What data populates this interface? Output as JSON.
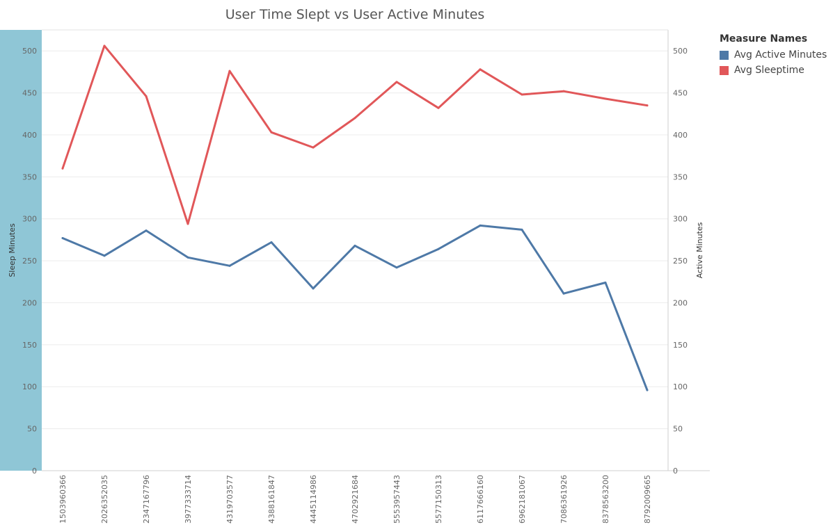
{
  "chart_data": {
    "type": "line",
    "title": "User Time Slept vs User Active Minutes",
    "categories": [
      "1503960366",
      "2026352035",
      "2347167796",
      "3977333714",
      "4319703577",
      "4388161847",
      "4445114986",
      "4702921684",
      "5553957443",
      "5577150313",
      "6117666160",
      "6962181067",
      "7086361926",
      "8378563200",
      "8792009665"
    ],
    "y_left_label": "Sleep Minutes",
    "y_right_label": "Active Minutes",
    "ylim": [
      0,
      525
    ],
    "y_ticks": [
      0,
      50,
      100,
      150,
      200,
      250,
      300,
      350,
      400,
      450,
      500
    ],
    "grid": true,
    "legend_title": "Measure Names",
    "legend_position": "top-right",
    "series": [
      {
        "name": "Avg Active Minutes",
        "color": "#4e79a7",
        "axis": "right",
        "values": [
          277,
          256,
          286,
          254,
          244,
          272,
          217,
          268,
          242,
          264,
          292,
          287,
          211,
          224,
          96
        ]
      },
      {
        "name": "Avg Sleeptime",
        "color": "#e15759",
        "axis": "left",
        "values": [
          360,
          506,
          446,
          294,
          476,
          403,
          385,
          420,
          463,
          432,
          478,
          448,
          452,
          443,
          435
        ]
      }
    ]
  }
}
